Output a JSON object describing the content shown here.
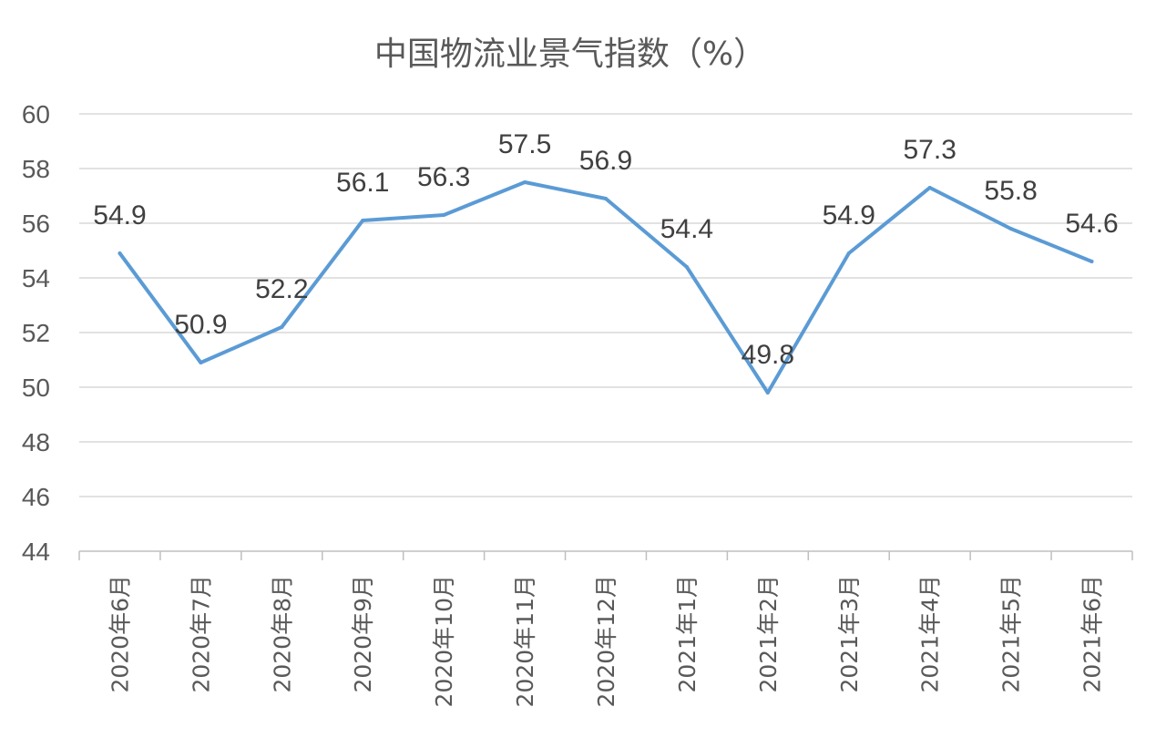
{
  "chart_data": {
    "type": "line",
    "title": "中国物流业景气指数（%）",
    "categories": [
      "2020年6月",
      "2020年7月",
      "2020年8月",
      "2020年9月",
      "2020年10月",
      "2020年11月",
      "2020年12月",
      "2021年1月",
      "2021年2月",
      "2021年3月",
      "2021年4月",
      "2021年5月",
      "2021年6月"
    ],
    "series": [
      {
        "values": [
          54.9,
          50.9,
          52.2,
          56.1,
          56.3,
          57.5,
          56.9,
          54.4,
          49.8,
          54.9,
          57.3,
          55.8,
          54.6
        ],
        "color": "#5b9bd5"
      }
    ],
    "ylim": [
      44,
      60
    ],
    "yticks": [
      60,
      58,
      56,
      54,
      52,
      50,
      48,
      46,
      44
    ],
    "grid": true,
    "legend": "none",
    "data_labels": true
  }
}
